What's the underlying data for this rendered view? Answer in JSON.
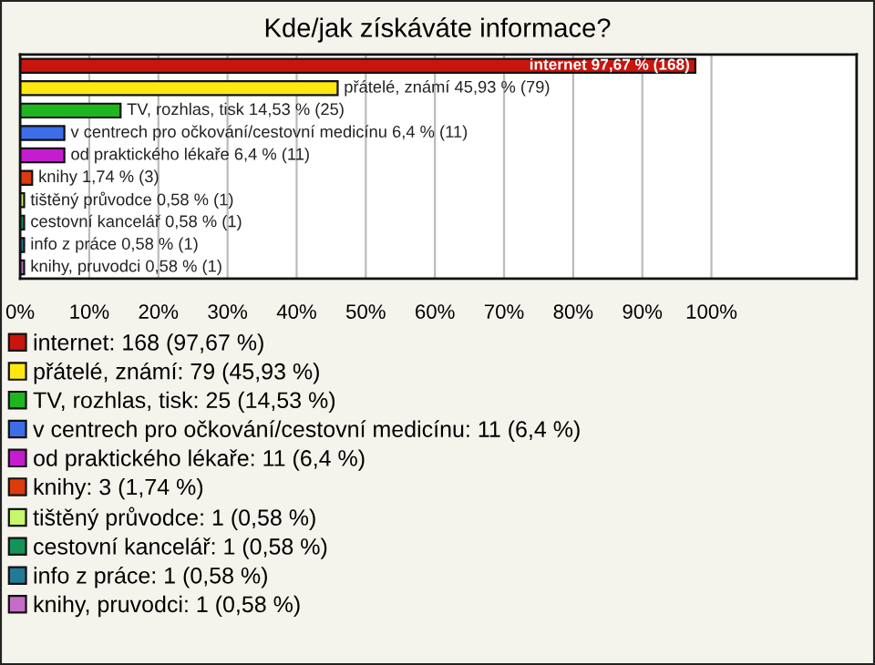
{
  "chart_data": {
    "type": "bar",
    "orientation": "horizontal",
    "title": "Kde/jak získáváte informace?",
    "categories": [
      null,
      null,
      null,
      null,
      null,
      null,
      null,
      null,
      null,
      null
    ],
    "series": [
      {
        "name": "internet: 168 (97,67 %)",
        "color": "#c8160f",
        "values": [
          97.67,
          null,
          null,
          null,
          null,
          null,
          null,
          null,
          null,
          null
        ],
        "value_labels": [
          "internet 97,67 % (168)",
          null,
          null,
          null,
          null,
          null,
          null,
          null,
          null,
          null
        ]
      },
      {
        "name": "přátelé, známí: 79 (45,93 %)",
        "color": "#ffe810",
        "values": [
          null,
          45.93,
          null,
          null,
          null,
          null,
          null,
          null,
          null,
          null
        ],
        "value_labels": [
          null,
          "přátelé, známí 45,93 % (79)",
          null,
          null,
          null,
          null,
          null,
          null,
          null,
          null
        ]
      },
      {
        "name": "TV, rozhlas, tisk: 25 (14,53 %)",
        "color": "#1fb51f",
        "values": [
          null,
          null,
          14.53,
          null,
          null,
          null,
          null,
          null,
          null,
          null
        ],
        "value_labels": [
          null,
          null,
          "TV, rozhlas, tisk 14,53 % (25)",
          null,
          null,
          null,
          null,
          null,
          null,
          null
        ]
      },
      {
        "name": "v centrech pro očkování/cestovní medicínu: 11 (6,4 %)",
        "color": "#3d6ee8",
        "values": [
          null,
          null,
          null,
          6.4,
          null,
          null,
          null,
          null,
          null,
          null
        ],
        "value_labels": [
          null,
          null,
          null,
          "v centrech pro očkování/cestovní medicínu 6,4 % (11)",
          null,
          null,
          null,
          null,
          null,
          null
        ]
      },
      {
        "name": "od praktického lékaře: 11 (6,4 %)",
        "color": "#c61ccf",
        "values": [
          null,
          null,
          null,
          null,
          6.4,
          null,
          null,
          null,
          null,
          null
        ],
        "value_labels": [
          null,
          null,
          null,
          null,
          "od praktického lékaře 6,4 % (11)",
          null,
          null,
          null,
          null,
          null
        ]
      },
      {
        "name": "knihy: 3 (1,74 %)",
        "color": "#dd3b0c",
        "values": [
          null,
          null,
          null,
          null,
          null,
          1.74,
          null,
          null,
          null,
          null
        ],
        "value_labels": [
          null,
          null,
          null,
          null,
          null,
          "knihy 1,74 % (3)",
          null,
          null,
          null,
          null
        ]
      },
      {
        "name": "tištěný průvodce: 1 (0,58 %)",
        "color": "#c8f76a",
        "values": [
          null,
          null,
          null,
          null,
          null,
          null,
          0.58,
          null,
          null,
          null
        ],
        "value_labels": [
          null,
          null,
          null,
          null,
          null,
          null,
          "tištěný průvodce 0,58 % (1)",
          null,
          null,
          null
        ]
      },
      {
        "name": "cestovní kancelář: 1 (0,58 %)",
        "color": "#14945a",
        "values": [
          null,
          null,
          null,
          null,
          null,
          null,
          null,
          0.58,
          null,
          null
        ],
        "value_labels": [
          null,
          null,
          null,
          null,
          null,
          null,
          null,
          "cestovní kancelář 0,58 % (1)",
          null,
          null
        ]
      },
      {
        "name": "info z práce: 1 (0,58 %)",
        "color": "#237a96",
        "values": [
          null,
          null,
          null,
          null,
          null,
          null,
          null,
          null,
          0.58,
          null
        ],
        "value_labels": [
          null,
          null,
          null,
          null,
          null,
          null,
          null,
          null,
          "info z práce 0,58 % (1)",
          null
        ]
      },
      {
        "name": "knihy, pruvodci: 1 (0,58 %)",
        "color": "#c66cc6",
        "values": [
          null,
          null,
          null,
          null,
          null,
          null,
          null,
          null,
          null,
          0.58
        ],
        "value_labels": [
          null,
          null,
          null,
          null,
          null,
          null,
          null,
          null,
          null,
          "knihy, pruvodci 0,58 % (1)"
        ]
      }
    ],
    "xlim": [
      0,
      121
    ],
    "xticks": [
      {
        "value": 0,
        "label": "0%"
      },
      {
        "value": 10,
        "label": "10%"
      },
      {
        "value": 20,
        "label": "20%"
      },
      {
        "value": 30,
        "label": "30%"
      },
      {
        "value": 40,
        "label": "40%"
      },
      {
        "value": 50,
        "label": "50%"
      },
      {
        "value": 60,
        "label": "60%"
      },
      {
        "value": 70,
        "label": "70%"
      },
      {
        "value": 80,
        "label": "80%"
      },
      {
        "value": 90,
        "label": "90%"
      },
      {
        "value": 100,
        "label": "100%"
      }
    ],
    "tick_labels": "x",
    "grid": "x",
    "legend": "bottom"
  }
}
